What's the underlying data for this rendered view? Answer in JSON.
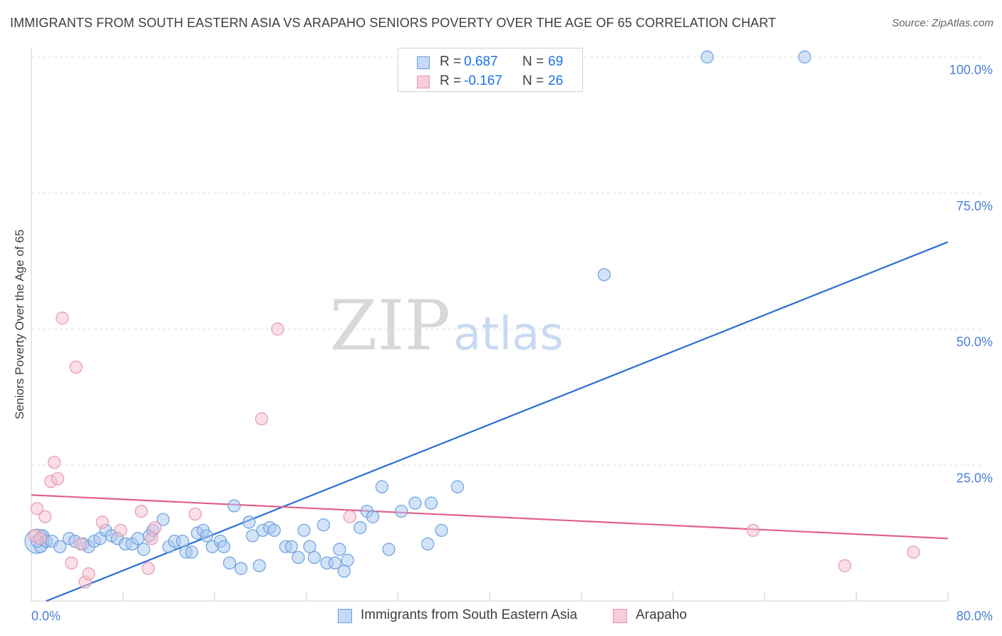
{
  "title": "IMMIGRANTS FROM SOUTH EASTERN ASIA VS ARAPAHO SENIORS POVERTY OVER THE AGE OF 65 CORRELATION CHART",
  "source": "Source: ZipAtlas.com",
  "watermark": {
    "zip": "ZIP",
    "atlas": "atlas"
  },
  "colors": {
    "blue_fill": "#a8c7f0",
    "blue_stroke": "#6a9fe0",
    "blue_line": "#2a6fd1",
    "pink_fill": "#f5bfd0",
    "pink_stroke": "#e896b0",
    "pink_line": "#e0618a",
    "tick_text": "#4a7fd4",
    "grid": "#dddddd"
  },
  "legend": {
    "rows": [
      {
        "r_label": "R =",
        "r_value": "0.687",
        "n_label": "N =",
        "n_value": "69"
      },
      {
        "r_label": "R =",
        "r_value": "-0.167",
        "n_label": "N =",
        "n_value": "26"
      }
    ]
  },
  "bottom_legend": {
    "series1": "Immigrants from South Eastern Asia",
    "series2": "Arapaho"
  },
  "chart_data": {
    "type": "scatter",
    "title": "IMMIGRANTS FROM SOUTH EASTERN ASIA VS ARAPAHO SENIORS POVERTY OVER THE AGE OF 65 CORRELATION CHART",
    "xlabel": "",
    "ylabel": "Seniors Poverty Over the Age of 65",
    "xlim": [
      0,
      80
    ],
    "ylim": [
      0,
      100
    ],
    "x_tick_labels": [
      "0.0%",
      "80.0%"
    ],
    "y_tick_labels": [
      "100.0%",
      "75.0%",
      "50.0%",
      "25.0%"
    ],
    "y_ticks": [
      100,
      75,
      50,
      25
    ],
    "series": [
      {
        "name": "Immigrants from South Eastern Asia",
        "R": 0.687,
        "N": 69,
        "trendline": [
          [
            1.3,
            0
          ],
          [
            80,
            66
          ]
        ],
        "points": [
          [
            0.5,
            11
          ],
          [
            0.8,
            10
          ],
          [
            1.0,
            12
          ],
          [
            1.3,
            11
          ],
          [
            1.8,
            11
          ],
          [
            2.5,
            10
          ],
          [
            3.3,
            11.5
          ],
          [
            3.8,
            11
          ],
          [
            4.5,
            10.5
          ],
          [
            5.0,
            10
          ],
          [
            5.5,
            11
          ],
          [
            6.0,
            11.5
          ],
          [
            6.5,
            13
          ],
          [
            7.0,
            12
          ],
          [
            7.5,
            11.5
          ],
          [
            8.2,
            10.5
          ],
          [
            8.8,
            10.5
          ],
          [
            9.3,
            11.5
          ],
          [
            9.8,
            9.5
          ],
          [
            10.3,
            12
          ],
          [
            10.6,
            13
          ],
          [
            11.5,
            15
          ],
          [
            12.0,
            10
          ],
          [
            12.5,
            11
          ],
          [
            13.2,
            11
          ],
          [
            13.5,
            9
          ],
          [
            14.0,
            9
          ],
          [
            14.5,
            12.5
          ],
          [
            15.0,
            13
          ],
          [
            15.3,
            12
          ],
          [
            15.8,
            10
          ],
          [
            16.5,
            11
          ],
          [
            16.8,
            10
          ],
          [
            17.3,
            7
          ],
          [
            17.7,
            17.5
          ],
          [
            18.3,
            6
          ],
          [
            19.0,
            14.5
          ],
          [
            19.3,
            12
          ],
          [
            19.9,
            6.5
          ],
          [
            20.2,
            13
          ],
          [
            20.8,
            13.5
          ],
          [
            21.2,
            13
          ],
          [
            22.2,
            10
          ],
          [
            22.7,
            10
          ],
          [
            23.3,
            8
          ],
          [
            23.8,
            13
          ],
          [
            24.3,
            10
          ],
          [
            24.7,
            8
          ],
          [
            25.5,
            14
          ],
          [
            25.8,
            7
          ],
          [
            26.5,
            7
          ],
          [
            26.9,
            9.5
          ],
          [
            27.3,
            5.5
          ],
          [
            27.6,
            7.5
          ],
          [
            28.7,
            13.5
          ],
          [
            29.3,
            16.5
          ],
          [
            29.8,
            15.5
          ],
          [
            30.6,
            21
          ],
          [
            31.2,
            9.5
          ],
          [
            32.3,
            16.5
          ],
          [
            33.5,
            18
          ],
          [
            34.6,
            10.5
          ],
          [
            34.9,
            18
          ],
          [
            35.8,
            13
          ],
          [
            37.2,
            21
          ],
          [
            50.0,
            60
          ],
          [
            59.0,
            100
          ],
          [
            67.5,
            100
          ],
          [
            0.5,
            11
          ]
        ]
      },
      {
        "name": "Arapaho",
        "R": -0.167,
        "N": 26,
        "trendline": [
          [
            0,
            19.5
          ],
          [
            80,
            11.5
          ]
        ],
        "points": [
          [
            0.3,
            12
          ],
          [
            0.5,
            17
          ],
          [
            0.8,
            11.5
          ],
          [
            1.2,
            15.5
          ],
          [
            1.7,
            22
          ],
          [
            2.0,
            25.5
          ],
          [
            2.3,
            22.5
          ],
          [
            2.7,
            52
          ],
          [
            3.5,
            7
          ],
          [
            3.9,
            43
          ],
          [
            4.3,
            10.5
          ],
          [
            4.7,
            3.5
          ],
          [
            5.0,
            5
          ],
          [
            6.2,
            14.5
          ],
          [
            7.8,
            13
          ],
          [
            9.6,
            16.5
          ],
          [
            10.2,
            6
          ],
          [
            10.5,
            11.5
          ],
          [
            10.8,
            13.5
          ],
          [
            14.3,
            16
          ],
          [
            20.1,
            33.5
          ],
          [
            21.5,
            50
          ],
          [
            27.8,
            15.5
          ],
          [
            63.0,
            13
          ],
          [
            71.0,
            6.5
          ],
          [
            77.0,
            9
          ]
        ]
      }
    ]
  }
}
